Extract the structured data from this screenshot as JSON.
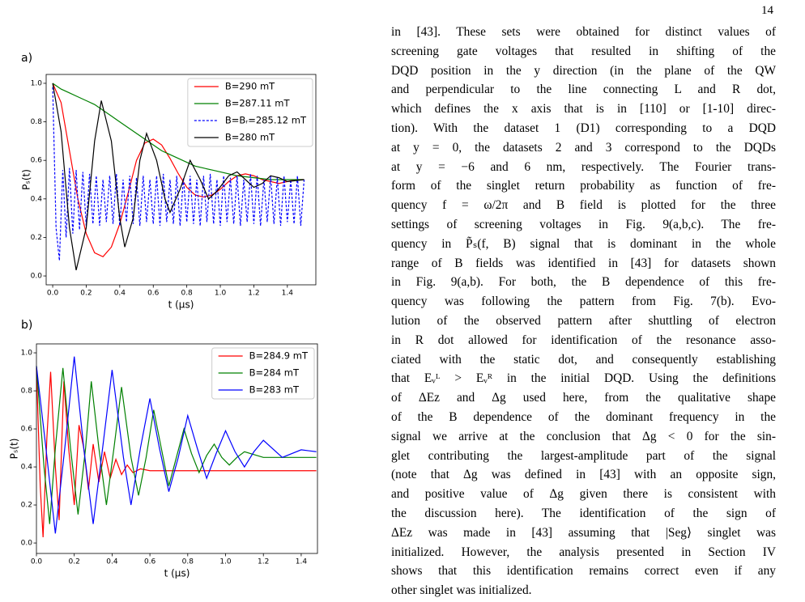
{
  "page_number": "14",
  "chart_data": [
    {
      "type": "line",
      "panel_label": "a)",
      "xlabel": "t (μs)",
      "ylabel": "Pₛ(t)",
      "xlim": [
        -0.039,
        1.57
      ],
      "ylim": [
        -0.046,
        1.046
      ],
      "xticks": [
        {
          "value": 0,
          "label": "0.0"
        },
        0.2,
        0.4,
        0.6,
        0.8,
        {
          "value": 1,
          "label": "1.0"
        },
        1.2,
        1.4
      ],
      "yticks": [
        {
          "value": 0,
          "label": "0.0"
        },
        0.2,
        0.4,
        0.6,
        0.8,
        {
          "value": 1,
          "label": "1.0"
        }
      ],
      "legend": "upper right",
      "series": [
        {
          "name": "B=290 mT",
          "color": "red",
          "dashed": false,
          "x": [
            0,
            0.05,
            0.1,
            0.15,
            0.2,
            0.25,
            0.3,
            0.35,
            0.4,
            0.45,
            0.5,
            0.55,
            0.6,
            0.65,
            0.7,
            0.75,
            0.8,
            0.85,
            0.9,
            0.95,
            1.0,
            1.05,
            1.1,
            1.15,
            1.2,
            1.25,
            1.3,
            1.35,
            1.4,
            1.45,
            1.5
          ],
          "values": [
            1.0,
            0.9,
            0.65,
            0.4,
            0.22,
            0.12,
            0.1,
            0.15,
            0.27,
            0.43,
            0.6,
            0.69,
            0.71,
            0.68,
            0.61,
            0.53,
            0.46,
            0.42,
            0.41,
            0.42,
            0.45,
            0.49,
            0.52,
            0.53,
            0.52,
            0.5,
            0.49,
            0.48,
            0.49,
            0.5,
            0.5
          ]
        },
        {
          "name": "B=287.11 mT",
          "color": "green",
          "dashed": false,
          "x": [
            0,
            0.05,
            0.1,
            0.15,
            0.2,
            0.25,
            0.3,
            0.35,
            0.4,
            0.45,
            0.5,
            0.55,
            0.6,
            0.65,
            0.7,
            0.75,
            0.8,
            0.85,
            0.9,
            0.95,
            1.0,
            1.1,
            1.2,
            1.3,
            1.4,
            1.5
          ],
          "values": [
            1.0,
            0.97,
            0.95,
            0.93,
            0.91,
            0.89,
            0.86,
            0.83,
            0.8,
            0.77,
            0.74,
            0.71,
            0.68,
            0.65,
            0.63,
            0.61,
            0.59,
            0.57,
            0.56,
            0.55,
            0.54,
            0.52,
            0.51,
            0.5,
            0.5,
            0.5
          ]
        },
        {
          "name": "B=Bᵣ=285.12 mT",
          "color": "blue",
          "dashed": true,
          "x": [
            0,
            0.02,
            0.04,
            0.06,
            0.08,
            0.1,
            0.12,
            0.14,
            0.16,
            0.18,
            0.2,
            0.22,
            0.24,
            0.26,
            0.28,
            0.3,
            0.32,
            0.34,
            0.36,
            0.38,
            0.4,
            0.42,
            0.44,
            0.46,
            0.48,
            0.5,
            0.52,
            0.54,
            0.56,
            0.58,
            0.6,
            0.62,
            0.64,
            0.66,
            0.68,
            0.7,
            0.72,
            0.74,
            0.76,
            0.78,
            0.8,
            0.82,
            0.84,
            0.86,
            0.88,
            0.9,
            0.92,
            0.94,
            0.96,
            0.98,
            1.0,
            1.02,
            1.04,
            1.06,
            1.08,
            1.1,
            1.12,
            1.14,
            1.16,
            1.18,
            1.2,
            1.22,
            1.24,
            1.26,
            1.28,
            1.3,
            1.32,
            1.34,
            1.36,
            1.38,
            1.4,
            1.42,
            1.44,
            1.46,
            1.48,
            1.5
          ],
          "values": [
            0.98,
            0.25,
            0.08,
            0.55,
            0.2,
            0.56,
            0.22,
            0.55,
            0.24,
            0.54,
            0.26,
            0.53,
            0.27,
            0.52,
            0.26,
            0.5,
            0.28,
            0.52,
            0.27,
            0.53,
            0.26,
            0.5,
            0.28,
            0.52,
            0.27,
            0.51,
            0.26,
            0.52,
            0.28,
            0.5,
            0.27,
            0.52,
            0.26,
            0.53,
            0.28,
            0.5,
            0.27,
            0.52,
            0.26,
            0.51,
            0.28,
            0.52,
            0.27,
            0.5,
            0.26,
            0.52,
            0.28,
            0.53,
            0.27,
            0.5,
            0.26,
            0.52,
            0.28,
            0.51,
            0.27,
            0.52,
            0.26,
            0.5,
            0.28,
            0.53,
            0.27,
            0.52,
            0.26,
            0.5,
            0.28,
            0.52,
            0.27,
            0.51,
            0.26,
            0.52,
            0.28,
            0.5,
            0.27,
            0.52,
            0.26,
            0.5
          ]
        },
        {
          "name": "B=280 mT",
          "color": "black",
          "dashed": false,
          "x": [
            0,
            0.05,
            0.1,
            0.14,
            0.2,
            0.25,
            0.29,
            0.35,
            0.4,
            0.43,
            0.48,
            0.52,
            0.56,
            0.62,
            0.67,
            0.7,
            0.76,
            0.82,
            0.88,
            0.93,
            0.98,
            1.05,
            1.1,
            1.15,
            1.2,
            1.25,
            1.3,
            1.35,
            1.4,
            1.5
          ],
          "values": [
            1.0,
            0.75,
            0.25,
            0.03,
            0.25,
            0.7,
            0.91,
            0.7,
            0.3,
            0.15,
            0.3,
            0.6,
            0.74,
            0.6,
            0.4,
            0.33,
            0.45,
            0.6,
            0.5,
            0.4,
            0.44,
            0.52,
            0.54,
            0.5,
            0.46,
            0.48,
            0.52,
            0.51,
            0.49,
            0.5
          ]
        }
      ]
    },
    {
      "type": "line",
      "panel_label": "b)",
      "xlabel": "t (μs)",
      "ylabel": "Pₛ(t)",
      "xlim": [
        0,
        1.486
      ],
      "ylim": [
        -0.055,
        1.047
      ],
      "xticks": [
        {
          "value": 0,
          "label": "0.0"
        },
        0.2,
        0.4,
        0.6,
        0.8,
        {
          "value": 1,
          "label": "1.0"
        },
        1.2,
        1.4
      ],
      "yticks": [
        {
          "value": 0,
          "label": "0.0"
        },
        0.2,
        0.4,
        0.6,
        0.8,
        {
          "value": 1,
          "label": "1.0"
        }
      ],
      "legend": "upper right",
      "series": [
        {
          "name": "B=284.9 mT",
          "color": "red",
          "dashed": false,
          "x": [
            0,
            0.02,
            0.035,
            0.055,
            0.075,
            0.1,
            0.12,
            0.145,
            0.17,
            0.2,
            0.225,
            0.25,
            0.275,
            0.3,
            0.33,
            0.36,
            0.39,
            0.42,
            0.45,
            0.48,
            0.51,
            0.55,
            0.6,
            1.0,
            1.48
          ],
          "values": [
            0.92,
            0.3,
            0.03,
            0.55,
            0.9,
            0.4,
            0.12,
            0.85,
            0.5,
            0.2,
            0.62,
            0.5,
            0.28,
            0.52,
            0.32,
            0.48,
            0.34,
            0.44,
            0.36,
            0.41,
            0.37,
            0.39,
            0.38,
            0.38,
            0.38
          ]
        },
        {
          "name": "B=284 mT",
          "color": "green",
          "dashed": false,
          "x": [
            0,
            0.04,
            0.07,
            0.1,
            0.14,
            0.18,
            0.22,
            0.26,
            0.29,
            0.33,
            0.37,
            0.41,
            0.45,
            0.5,
            0.54,
            0.58,
            0.62,
            0.66,
            0.7,
            0.74,
            0.78,
            0.82,
            0.86,
            0.9,
            0.94,
            0.98,
            1.02,
            1.06,
            1.1,
            1.2,
            1.48
          ],
          "values": [
            0.93,
            0.4,
            0.1,
            0.5,
            0.92,
            0.5,
            0.15,
            0.5,
            0.85,
            0.5,
            0.2,
            0.5,
            0.82,
            0.45,
            0.25,
            0.45,
            0.7,
            0.5,
            0.3,
            0.45,
            0.6,
            0.47,
            0.37,
            0.46,
            0.52,
            0.45,
            0.41,
            0.45,
            0.48,
            0.45,
            0.45
          ]
        },
        {
          "name": "B=283 mT",
          "color": "blue",
          "dashed": false,
          "x": [
            0,
            0.05,
            0.1,
            0.15,
            0.2,
            0.25,
            0.3,
            0.35,
            0.4,
            0.46,
            0.5,
            0.55,
            0.6,
            0.65,
            0.7,
            0.75,
            0.8,
            0.85,
            0.9,
            0.95,
            1.0,
            1.05,
            1.1,
            1.15,
            1.2,
            1.3,
            1.4,
            1.48
          ],
          "values": [
            0.93,
            0.5,
            0.05,
            0.5,
            0.98,
            0.5,
            0.1,
            0.5,
            0.91,
            0.45,
            0.2,
            0.5,
            0.76,
            0.5,
            0.27,
            0.45,
            0.67,
            0.5,
            0.34,
            0.47,
            0.59,
            0.48,
            0.4,
            0.48,
            0.54,
            0.45,
            0.49,
            0.48
          ]
        }
      ]
    }
  ],
  "text": {
    "lines": [
      "in [43]. These sets were obtained for distinct values of",
      "screening gate voltages that resulted in shifting of the",
      "DQD position in the y direction (in the plane of the QW",
      "and perpendicular to the line connecting L and R dot,",
      "which defines the x axis that is in [110] or [1-10] direc-",
      "tion). With the dataset 1 (D1) corresponding to a DQD",
      "at y = 0, the datasets 2 and 3 correspond to the DQDs",
      "at y = −6 and 6 nm, respectively. The Fourier trans-",
      "form of the singlet return probability as function of fre-",
      "quency f = ω/2π and B field is plotted for the three",
      "settings of screening voltages in Fig. 9(a,b,c). The fre-",
      "quency in P̃ₛ(f, B) signal that is dominant in the whole",
      "range of B fields was identified in [43] for datasets shown",
      "in Fig. 9(a,b). For both, the B dependence of this fre-",
      "quency was following the pattern from Fig. 7(b). Evo-",
      "lution of the observed pattern after shuttling of electron",
      "in R dot allowed for identification of the resonance asso-",
      "ciated with the static dot, and consequently establishing",
      "that Eᵥᴸ > Eᵥᴿ in the initial DQD. Using the definitions",
      "of ΔEᴢ and Δg used here, from the qualitative shape",
      "of the B dependence of the dominant frequency in the",
      "signal we arrive at the conclusion that Δg < 0 for the sin-",
      "glet contributing the largest-amplitude part of the signal",
      "(note that Δg was defined in [43] with an opposite sign,",
      "and positive value of Δg given there is consistent with",
      "the discussion here). The identification of the sign of",
      "ΔEᴢ was made in [43] assuming that |Seg⟩ singlet was",
      "initialized. However, the analysis presented in Section IV",
      "shows that this identification remains correct even if any",
      "other singlet was initialized."
    ]
  }
}
